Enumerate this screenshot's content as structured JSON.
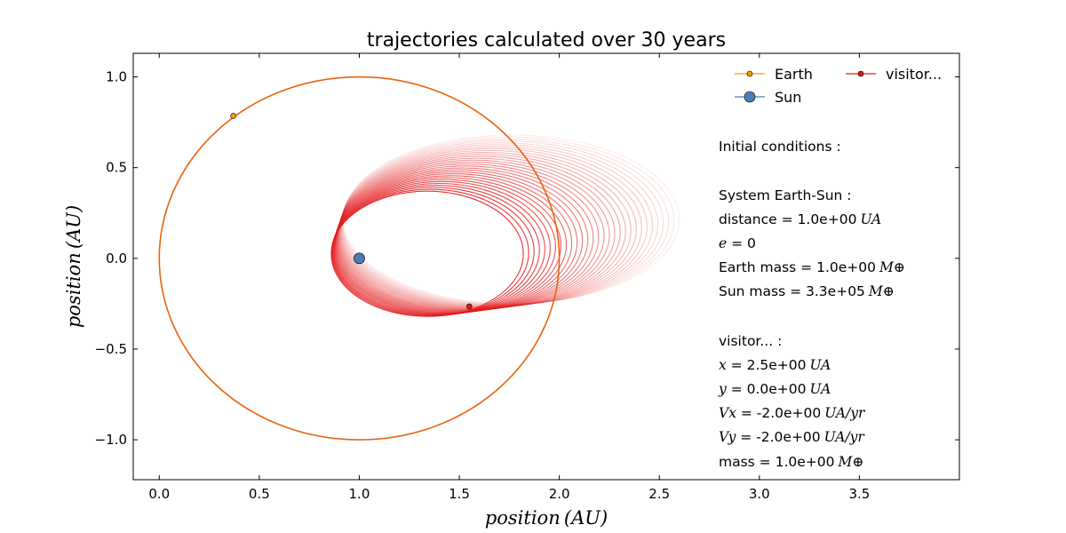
{
  "chart_data": {
    "type": "line",
    "title": "trajectories calculated over 30 years",
    "xlabel": "position (AU)",
    "ylabel": "position (AU)",
    "xlim": [
      -0.13,
      4.0
    ],
    "ylim": [
      -1.22,
      1.13
    ],
    "xticks": [
      0.0,
      0.5,
      1.0,
      1.5,
      2.0,
      2.5,
      3.0,
      3.5
    ],
    "xtick_labels": [
      "0.0",
      "0.5",
      "1.0",
      "1.5",
      "2.0",
      "2.5",
      "3.0",
      "3.5"
    ],
    "yticks": [
      1.0,
      0.5,
      0.0,
      -0.5,
      -1.0
    ],
    "ytick_labels": [
      "1.0",
      "0.5",
      "0.0",
      "−0.5",
      "−1.0"
    ],
    "grid": false,
    "legend_position": "top-right",
    "legend": [
      {
        "label": "Earth",
        "color": "#ff9900",
        "marker": "circle-small"
      },
      {
        "label": "visitor...",
        "color": "#e31a1c",
        "marker": "circle-small"
      },
      {
        "label": "Sun",
        "color": "#4a7fb5",
        "marker": "circle-large"
      }
    ],
    "series": [
      {
        "name": "Earth",
        "color": "#e8640e",
        "shape": "circle",
        "center": [
          1.0,
          0.0
        ],
        "radius": 1.0,
        "current_position": [
          0.37,
          0.785
        ]
      },
      {
        "name": "Sun",
        "color": "#4a7fb5",
        "position": [
          1.0,
          0.0
        ]
      },
      {
        "name": "visitor...",
        "color": "#e31a1c",
        "shape": "precessing-ellipses",
        "orbit_count": 30,
        "inner_orbit": {
          "x_range": [
            0.86,
            1.82
          ],
          "y_range": [
            -0.32,
            0.37
          ]
        },
        "outer_orbit": {
          "x_range": [
            0.92,
            2.6
          ],
          "y_range": [
            -0.25,
            0.68
          ]
        },
        "current_position": [
          1.55,
          -0.265
        ]
      }
    ],
    "annotations": [
      "Initial conditions :",
      "",
      "System Earth-Sun :",
      "distance = 1.0e+00 UA",
      "e = 0",
      "Earth mass = 1.0e+00 M⊕",
      "Sun mass = 3.3e+05 M⊕",
      "",
      "visitor... :",
      "x = 2.5e+00 UA",
      "y = 0.0e+00 UA",
      "Vx = -2.0e+00 UA/yr",
      "Vy = -2.0e+00 UA/yr",
      "mass = 1.0e+00 M⊕"
    ]
  },
  "info": {
    "heading": "Initial conditions :",
    "system_heading": "System Earth-Sun :",
    "distance_label": "distance = ",
    "distance_value": "1.0e+00",
    "distance_unit": "UA",
    "e_label": "e",
    "e_value": " = 0",
    "earth_mass_label": "Earth mass = ",
    "earth_mass_value": "1.0e+00",
    "earth_mass_unit": "M⊕",
    "sun_mass_label": "Sun mass = ",
    "sun_mass_value": "3.3e+05",
    "sun_mass_unit": "M⊕",
    "visitor_heading": "visitor... :",
    "x_label": "x",
    "x_value": " = 2.5e+00",
    "x_unit": "UA",
    "y_label": "y",
    "y_value": " = 0.0e+00",
    "y_unit": "UA",
    "vx_label": "Vx",
    "vx_value": " = -2.0e+00",
    "vx_unit": "UA/yr",
    "vy_label": "Vy",
    "vy_value": " = -2.0e+00",
    "vy_unit": "UA/yr",
    "mass_label": "mass = ",
    "mass_value": "1.0e+00",
    "mass_unit": "M⊕"
  }
}
